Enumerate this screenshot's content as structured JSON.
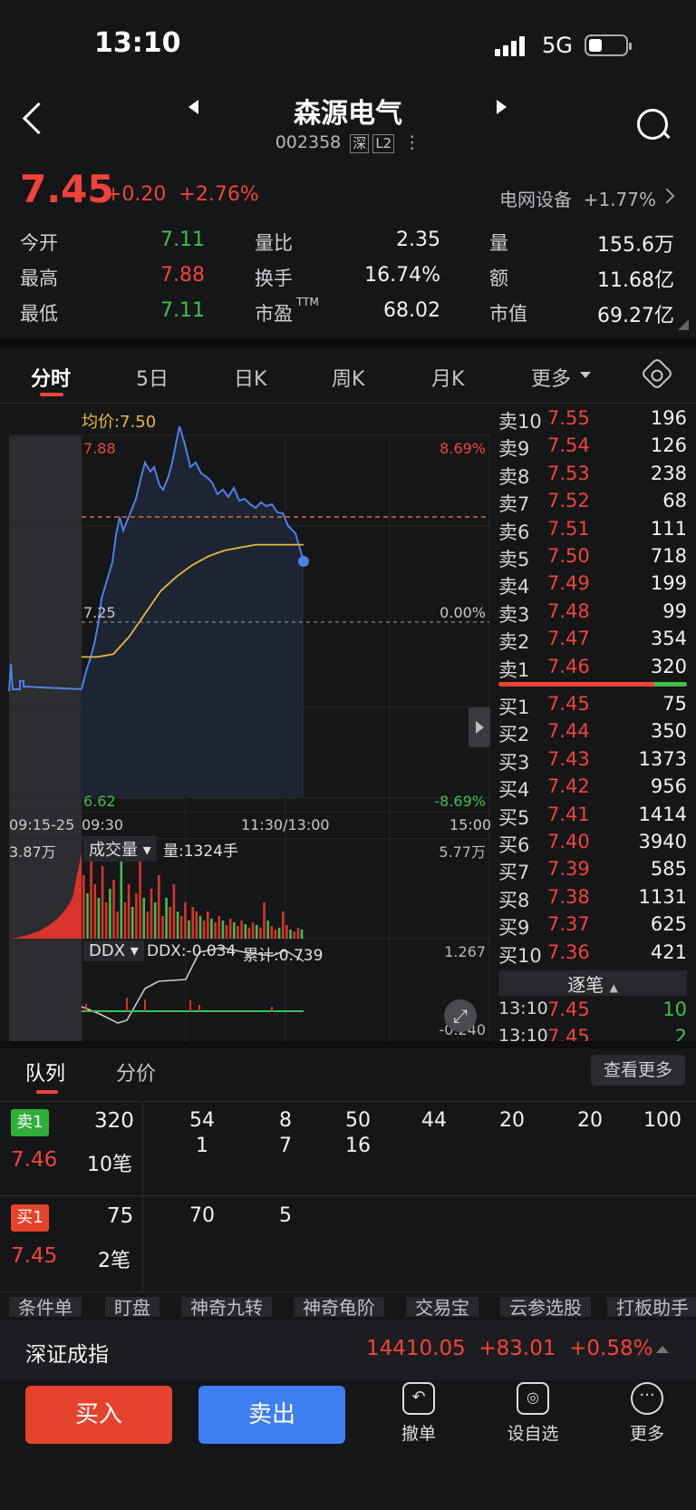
{
  "status": {
    "time": "13:10",
    "network": "5G"
  },
  "header": {
    "title": "森源电气",
    "code": "002358",
    "tag_market": "深",
    "tag_level": "L2"
  },
  "quote": {
    "price": "7.45",
    "change": "+0.20",
    "change_pct": "+2.76%",
    "sector": "电网设备",
    "sector_pct": "+1.77%",
    "stats": [
      {
        "label": "今开",
        "value": "7.11",
        "color": "green"
      },
      {
        "label": "量比",
        "value": "2.35",
        "color": "white"
      },
      {
        "label": "量",
        "value": "155.6万",
        "color": "white"
      },
      {
        "label": "最高",
        "value": "7.88",
        "color": "red"
      },
      {
        "label": "换手",
        "value": "16.74%",
        "color": "white"
      },
      {
        "label": "额",
        "value": "11.68亿",
        "color": "white"
      },
      {
        "label": "最低",
        "value": "7.11",
        "color": "green"
      },
      {
        "label": "市盈",
        "value": "68.02",
        "color": "white",
        "sup": "TTM"
      },
      {
        "label": "市值",
        "value": "69.27亿",
        "color": "white"
      }
    ]
  },
  "tabs": [
    "分时",
    "5日",
    "日K",
    "周K",
    "月K",
    "更多"
  ],
  "chart": {
    "avg_label": "均价:7.50",
    "y_top": "7.88",
    "y_mid": "7.25",
    "y_bot": "6.62",
    "pct_top": "8.69%",
    "pct_mid": "0.00%",
    "pct_bot": "-8.69%",
    "time_labels": [
      "09:15-25",
      "09:30",
      "11:30/13:00",
      "15:00"
    ],
    "vol_left": "3.87万",
    "vol_selector": "成交量",
    "vol_value": "量:1324手",
    "vol_max": "5.77万",
    "ddx_selector": "DDX",
    "ddx_value": "DDX:-0.034",
    "ddx_cum": "累计:0.739",
    "ddx_max": "1.267",
    "ddx_min": "-0.240"
  },
  "chart_data": {
    "type": "line",
    "y_range": [
      6.62,
      7.88
    ],
    "prev_close": 7.25,
    "series": [
      {
        "name": "均价",
        "values": [
          7.11,
          7.11,
          7.12,
          7.18,
          7.26,
          7.34,
          7.39,
          7.43,
          7.46,
          7.48,
          7.49,
          7.5,
          7.5,
          7.5,
          7.5
        ]
      }
    ]
  },
  "orderbook": {
    "asks": [
      {
        "label": "卖10",
        "price": "7.55",
        "vol": "196"
      },
      {
        "label": "卖9",
        "price": "7.54",
        "vol": "126"
      },
      {
        "label": "卖8",
        "price": "7.53",
        "vol": "238"
      },
      {
        "label": "卖7",
        "price": "7.52",
        "vol": "68"
      },
      {
        "label": "卖6",
        "price": "7.51",
        "vol": "111"
      },
      {
        "label": "卖5",
        "price": "7.50",
        "vol": "718"
      },
      {
        "label": "卖4",
        "price": "7.49",
        "vol": "199"
      },
      {
        "label": "卖3",
        "price": "7.48",
        "vol": "99"
      },
      {
        "label": "卖2",
        "price": "7.47",
        "vol": "354"
      },
      {
        "label": "卖1",
        "price": "7.46",
        "vol": "320"
      }
    ],
    "bids": [
      {
        "label": "买1",
        "price": "7.45",
        "vol": "75"
      },
      {
        "label": "买2",
        "price": "7.44",
        "vol": "350"
      },
      {
        "label": "买3",
        "price": "7.43",
        "vol": "1373"
      },
      {
        "label": "买4",
        "price": "7.42",
        "vol": "956"
      },
      {
        "label": "买5",
        "price": "7.41",
        "vol": "1414"
      },
      {
        "label": "买6",
        "price": "7.40",
        "vol": "3940"
      },
      {
        "label": "买7",
        "price": "7.39",
        "vol": "585"
      },
      {
        "label": "买8",
        "price": "7.38",
        "vol": "1131"
      },
      {
        "label": "买9",
        "price": "7.37",
        "vol": "625"
      },
      {
        "label": "买10",
        "price": "7.36",
        "vol": "421"
      }
    ],
    "tick_header": "逐笔",
    "ticks": [
      {
        "time": "13:10",
        "price": "7.45",
        "vol": "10"
      },
      {
        "time": "13:10",
        "price": "7.45",
        "vol": "2"
      }
    ]
  },
  "queue": {
    "tabs": [
      "队列",
      "分价"
    ],
    "more": "查看更多",
    "ask": {
      "badge": "卖1",
      "vol": "320",
      "price": "7.46",
      "count": "10笔",
      "row1": [
        "54",
        "8",
        "50",
        "44",
        "20",
        "20",
        "100"
      ],
      "row2": [
        "1",
        "7",
        "16"
      ]
    },
    "bid": {
      "badge": "买1",
      "vol": "75",
      "price": "7.45",
      "count": "2笔",
      "row1": [
        "70",
        "5"
      ]
    }
  },
  "chips": [
    "条件单",
    "盯盘",
    "神奇九转",
    "神奇龟阶",
    "交易宝",
    "云参选股",
    "打板助手"
  ],
  "index": {
    "name": "深证成指",
    "value": "14410.05",
    "change": "+83.01",
    "pct": "+0.58%"
  },
  "bottom": {
    "buy": "买入",
    "sell": "卖出",
    "cancel": "撤单",
    "watch": "设自选",
    "more": "更多"
  }
}
